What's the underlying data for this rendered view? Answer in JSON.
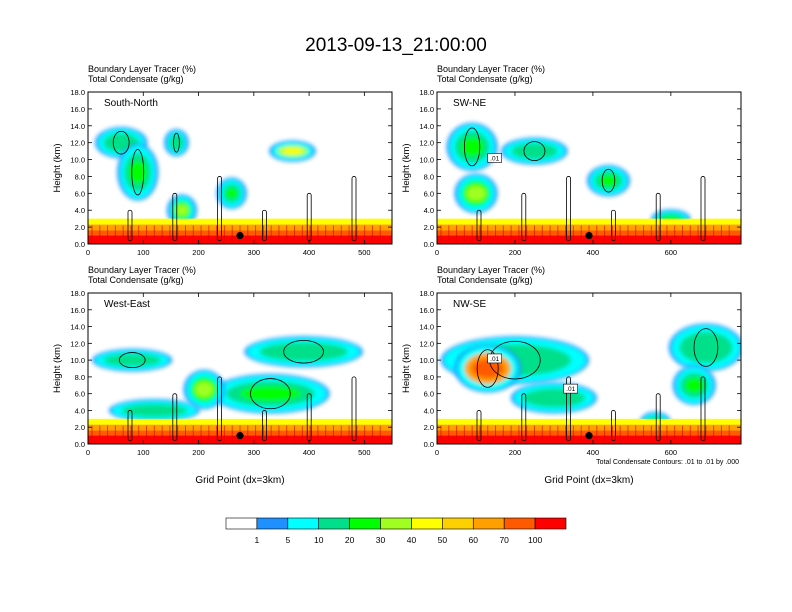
{
  "page_title": "2013-09-13_21:00:00",
  "colors": {
    "levels": [
      "#ffffff",
      "#1e90ff",
      "#00ffff",
      "#00e08a",
      "#00ff00",
      "#a0ff20",
      "#ffff00",
      "#ffd000",
      "#ffa000",
      "#ff5a00",
      "#ff0000"
    ]
  },
  "chart_data": [
    {
      "type": "heatmap",
      "panel_label": "South-North",
      "subtitle_1": "Boundary Layer Tracer   (%)",
      "subtitle_2": "Total Condensate   (g/kg)",
      "ylabel": "Height (km)",
      "xlabel": "",
      "xlim": [
        0,
        550
      ],
      "ylim": [
        0,
        18
      ],
      "xticks": [
        "0",
        "100",
        "200",
        "300",
        "400",
        "500"
      ],
      "yticks": [
        "0.0",
        "2.0",
        "4.0",
        "6.0",
        "8.0",
        "10.0",
        "12.0",
        "14.0",
        "16.0",
        "18.0"
      ],
      "marker_x": 275,
      "contour_labels": [],
      "cloud_blobs": [
        {
          "x": 60,
          "y": 12.0,
          "w": 80,
          "h": 3.0,
          "level": 3
        },
        {
          "x": 90,
          "y": 8.5,
          "w": 60,
          "h": 6.0,
          "level": 4
        },
        {
          "x": 160,
          "y": 12.0,
          "w": 30,
          "h": 2.5,
          "level": 3
        },
        {
          "x": 370,
          "y": 11.0,
          "w": 70,
          "h": 1.8,
          "level": 6
        },
        {
          "x": 260,
          "y": 6.0,
          "w": 40,
          "h": 3.0,
          "level": 4
        },
        {
          "x": 170,
          "y": 4.0,
          "w": 40,
          "h": 3.0,
          "level": 5
        }
      ]
    },
    {
      "type": "heatmap",
      "panel_label": "SW-NE",
      "subtitle_1": "Boundary Layer Tracer   (%)",
      "subtitle_2": "Total Condensate   (g/kg)",
      "ylabel": "Height (km)",
      "xlabel": "",
      "xlim": [
        0,
        780
      ],
      "ylim": [
        0,
        18
      ],
      "xticks": [
        "0",
        "200",
        "400",
        "600"
      ],
      "yticks": [
        "0.0",
        "2.0",
        "4.0",
        "6.0",
        "8.0",
        "10.0",
        "12.0",
        "14.0",
        "16.0",
        "18.0"
      ],
      "marker_x": 390,
      "contour_labels": [
        ".01"
      ],
      "cloud_blobs": [
        {
          "x": 90,
          "y": 11.5,
          "w": 110,
          "h": 5.0,
          "level": 4
        },
        {
          "x": 250,
          "y": 11.0,
          "w": 150,
          "h": 2.5,
          "level": 3
        },
        {
          "x": 440,
          "y": 7.5,
          "w": 90,
          "h": 3.0,
          "level": 4
        },
        {
          "x": 100,
          "y": 6.0,
          "w": 90,
          "h": 4.0,
          "level": 5
        },
        {
          "x": 600,
          "y": 3.0,
          "w": 80,
          "h": 1.5,
          "level": 4
        }
      ]
    },
    {
      "type": "heatmap",
      "panel_label": "West-East",
      "subtitle_1": "Boundary Layer Tracer   (%)",
      "subtitle_2": "Total Condensate   (g/kg)",
      "ylabel": "Height (km)",
      "xlabel": "Grid Point (dx=3km)",
      "xlim": [
        0,
        550
      ],
      "ylim": [
        0,
        18
      ],
      "xticks": [
        "0",
        "100",
        "200",
        "300",
        "400",
        "500"
      ],
      "yticks": [
        "0.0",
        "2.0",
        "4.0",
        "6.0",
        "8.0",
        "10.0",
        "12.0",
        "14.0",
        "16.0",
        "18.0"
      ],
      "marker_x": 275,
      "contour_labels": [],
      "cloud_blobs": [
        {
          "x": 80,
          "y": 10.0,
          "w": 130,
          "h": 2.0,
          "level": 3
        },
        {
          "x": 390,
          "y": 11.0,
          "w": 200,
          "h": 3.0,
          "level": 3
        },
        {
          "x": 330,
          "y": 6.0,
          "w": 200,
          "h": 4.0,
          "level": 4
        },
        {
          "x": 210,
          "y": 6.5,
          "w": 60,
          "h": 4.0,
          "level": 5
        },
        {
          "x": 120,
          "y": 4.0,
          "w": 150,
          "h": 2.0,
          "level": 3
        }
      ]
    },
    {
      "type": "heatmap",
      "panel_label": "NW-SE",
      "subtitle_1": "Boundary Layer Tracer   (%)",
      "subtitle_2": "Total Condensate   (g/kg)",
      "ylabel": "Height (km)",
      "xlabel": "Grid Point (dx=3km)",
      "xlim": [
        0,
        780
      ],
      "ylim": [
        0,
        18
      ],
      "xticks": [
        "0",
        "200",
        "400",
        "600"
      ],
      "yticks": [
        "0.0",
        "2.0",
        "4.0",
        "6.0",
        "8.0",
        "10.0",
        "12.0",
        "14.0",
        "16.0",
        "18.0"
      ],
      "marker_x": 390,
      "contour_labels": [
        ".01",
        ".01"
      ],
      "footnote": "Total Condensate Contours: .01 to .01 by .000",
      "cloud_blobs": [
        {
          "x": 200,
          "y": 10.0,
          "w": 360,
          "h": 5.0,
          "level": 3
        },
        {
          "x": 130,
          "y": 9.0,
          "w": 150,
          "h": 5.0,
          "level": 9
        },
        {
          "x": 690,
          "y": 11.5,
          "w": 170,
          "h": 5.0,
          "level": 3
        },
        {
          "x": 660,
          "y": 7.0,
          "w": 90,
          "h": 4.0,
          "level": 4
        },
        {
          "x": 300,
          "y": 5.5,
          "w": 200,
          "h": 3.0,
          "level": 3
        },
        {
          "x": 560,
          "y": 2.5,
          "w": 60,
          "h": 2.0,
          "level": 4
        }
      ]
    }
  ],
  "colorbar": {
    "labels": [
      "1",
      "5",
      "10",
      "20",
      "30",
      "40",
      "50",
      "60",
      "70",
      "100"
    ]
  }
}
